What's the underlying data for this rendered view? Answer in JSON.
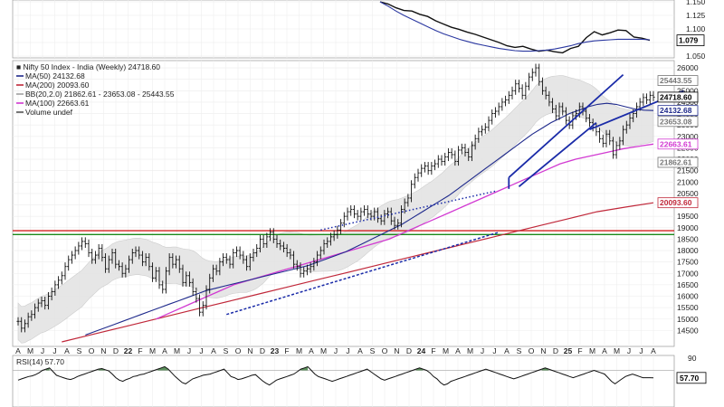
{
  "chart_data": [
    {
      "type": "line",
      "panel": "relative-ratio",
      "y_ticks": [
        1.05,
        1.075,
        1.1,
        1.125,
        1.15
      ],
      "y_tick_labels": [
        "1.050",
        "",
        "1.100",
        "1.125",
        "1.150"
      ],
      "ylim": [
        1.05,
        1.15
      ],
      "last_value_label": "1.079",
      "series": [
        {
          "values": [
            1.15,
            1.146,
            1.139,
            1.134,
            1.133,
            1.127,
            1.123,
            1.115,
            1.109,
            1.103,
            1.099,
            1.094,
            1.09,
            1.085,
            1.08,
            1.075,
            1.069,
            1.066,
            1.068,
            1.063,
            1.059,
            1.061,
            1.058,
            1.056,
            1.064,
            1.068,
            1.084,
            1.095,
            1.089,
            1.093,
            1.098,
            1.097,
            1.085,
            1.083,
            1.079
          ]
        },
        {
          "values": [
            1.15,
            1.142,
            1.133,
            1.125,
            1.118,
            1.111,
            1.104,
            1.097,
            1.091,
            1.086,
            1.081,
            1.077,
            1.073,
            1.07,
            1.067,
            1.064,
            1.062,
            1.06,
            1.059,
            1.059,
            1.06,
            1.061,
            1.063,
            1.066,
            1.069,
            1.073,
            1.076,
            1.078,
            1.079,
            1.08,
            1.081,
            1.081,
            1.081,
            1.081,
            1.08
          ]
        }
      ]
    },
    {
      "type": "candlestick",
      "panel": "price",
      "title": "Nifty 50 Index - India (Weekly) 24718.60",
      "legend": [
        {
          "text": "MA(50) 24132.68",
          "color": "#1f2a8c"
        },
        {
          "text": "MA(200) 20093.60",
          "color": "#c0283a"
        },
        {
          "text": "BB(20,2.0) 21862.61 - 23653.08 - 25443.55",
          "color": "#a0a0a0"
        },
        {
          "text": "MA(100) 22663.61",
          "color": "#d23ad2"
        },
        {
          "text": "Volume undef",
          "color": "#555555"
        }
      ],
      "ylim": [
        14000,
        26200
      ],
      "y_ticks": [
        14500,
        15000,
        15500,
        16000,
        16500,
        17000,
        17500,
        18000,
        18500,
        19000,
        19500,
        20000,
        20500,
        21000,
        21500,
        22000,
        22500,
        23000,
        23500,
        24000,
        24500,
        25000,
        25500,
        26000
      ],
      "right_labels": [
        {
          "value": 25443.55,
          "text": "25443.55",
          "color": "#777777"
        },
        {
          "value": 24718.6,
          "text": "24718.60",
          "color": "#000000"
        },
        {
          "value": 24132.68,
          "text": "24132.68",
          "color": "#1f2a8c"
        },
        {
          "value": 23653.08,
          "text": "23653.08",
          "color": "#777777"
        },
        {
          "value": 22663.61,
          "text": "22663.61",
          "color": "#d23ad2"
        },
        {
          "value": 21862.61,
          "text": "21862.61",
          "color": "#777777"
        },
        {
          "value": 20093.6,
          "text": "20093.60",
          "color": "#c0283a"
        }
      ],
      "x_labels": [
        "A",
        "M",
        "J",
        "J",
        "A",
        "S",
        "O",
        "N",
        "D",
        "22",
        "F",
        "M",
        "A",
        "M",
        "J",
        "J",
        "A",
        "S",
        "O",
        "N",
        "D",
        "23",
        "F",
        "M",
        "A",
        "M",
        "J",
        "J",
        "A",
        "S",
        "O",
        "N",
        "D",
        "24",
        "F",
        "M",
        "A",
        "M",
        "J",
        "J",
        "A",
        "S",
        "O",
        "N",
        "D",
        "25",
        "F",
        "M",
        "A",
        "M",
        "J",
        "J",
        "A"
      ],
      "closes": [
        14900,
        14600,
        14800,
        15100,
        15200,
        15500,
        15700,
        15800,
        15600,
        16000,
        16200,
        16500,
        16700,
        16900,
        17300,
        17600,
        17800,
        18000,
        18200,
        18400,
        18300,
        17900,
        17600,
        17800,
        18100,
        17700,
        17200,
        17600,
        17900,
        17400,
        17300,
        17000,
        17200,
        17600,
        17900,
        18000,
        17800,
        17500,
        17700,
        17300,
        16800,
        17100,
        16500,
        16300,
        17100,
        17700,
        17400,
        17600,
        17200,
        16600,
        16900,
        16600,
        16200,
        15900,
        15300,
        15600,
        16300,
        16800,
        17200,
        17100,
        17500,
        17700,
        17600,
        17400,
        17900,
        18000,
        17800,
        17600,
        17300,
        17700,
        17900,
        18100,
        18500,
        18300,
        18600,
        18800,
        18500,
        18300,
        18200,
        18100,
        17900,
        17800,
        17400,
        17300,
        17000,
        17100,
        17200,
        17300,
        17500,
        17800,
        18000,
        18300,
        18400,
        18600,
        18700,
        18900,
        19200,
        19500,
        19700,
        19800,
        19600,
        19500,
        19700,
        19800,
        19600,
        19500,
        19700,
        19400,
        19300,
        19600,
        19700,
        19300,
        19100,
        19200,
        19800,
        20100,
        20300,
        20900,
        21200,
        21400,
        21600,
        21700,
        21500,
        21700,
        21800,
        22000,
        21900,
        22100,
        22300,
        22200,
        21900,
        22400,
        22500,
        22300,
        22100,
        22600,
        22900,
        23200,
        23300,
        23400,
        23700,
        24000,
        24100,
        24300,
        24500,
        24600,
        24800,
        25000,
        25300,
        25100,
        24800,
        25200,
        25600,
        25800,
        26000,
        25400,
        25000,
        24800,
        24500,
        24200,
        23900,
        24300,
        24100,
        23700,
        23500,
        23900,
        24000,
        24300,
        24100,
        23800,
        23600,
        23400,
        23200,
        22900,
        22700,
        23100,
        22800,
        22200,
        22600,
        22800,
        23300,
        23500,
        23800,
        24000,
        24300,
        24500,
        24700,
        24600,
        24800,
        24719
      ],
      "ma50": [
        14300,
        14450,
        14600,
        14750,
        14900,
        15050,
        15200,
        15350,
        15500,
        15650,
        15800,
        15950,
        16100,
        16250,
        16350,
        16450,
        16550,
        16650,
        16750,
        16850,
        16950,
        17050,
        17150,
        17250,
        17350,
        17500,
        17650,
        17800,
        17950,
        18150,
        18350,
        18550,
        18750,
        18950,
        19150,
        19400,
        19650,
        19900,
        20150,
        20400,
        20700,
        21000,
        21300,
        21600,
        21900,
        22200,
        22500,
        22800,
        23100,
        23350,
        23600,
        23800,
        24000,
        24150,
        24300,
        24400,
        24450,
        24400,
        24300,
        24200,
        24150,
        24133
      ],
      "ma50_start": 60,
      "ma100": [
        15000,
        15300,
        15600,
        15900,
        16200,
        16500,
        16700,
        16900,
        17100,
        17300,
        17500,
        17700,
        17900,
        18100,
        18300,
        18500,
        18800,
        19100,
        19400,
        19700,
        20000,
        20300,
        20600,
        20900,
        21200,
        21500,
        21800,
        22000,
        22150,
        22300,
        22450,
        22560,
        22664
      ],
      "ma100_start": 121,
      "ma200": [
        14000,
        14300,
        14600,
        14900,
        15200,
        15500,
        15800,
        16100,
        16400,
        16700,
        17000,
        17300,
        17600,
        17900,
        18200,
        18500,
        18800,
        19100,
        19400,
        19700,
        19900,
        20094
      ],
      "ma200_start": 153,
      "bb_upper_offset": 800,
      "bb_lower_offset": 800,
      "horizontal_lines": [
        {
          "value": 18870,
          "color": "#d42020"
        },
        {
          "value": 18700,
          "color": "#1a8a1a"
        }
      ]
    },
    {
      "type": "line",
      "panel": "rsi",
      "title": "RSI(14) 57.70",
      "ylim": [
        10,
        90
      ],
      "y_ticks": [
        90,
        57.7
      ],
      "overbought": 70,
      "last_value_label": "57.70",
      "series": [
        {
          "name": "RSI(14) 57.70",
          "values": [
            54,
            56,
            58,
            60,
            61,
            63,
            66,
            70,
            72,
            74,
            68,
            62,
            60,
            58,
            56,
            55,
            57,
            60,
            62,
            64,
            66,
            68,
            70,
            72,
            73,
            71,
            69,
            64,
            58,
            54,
            52,
            55,
            57,
            60,
            61,
            63,
            64,
            66,
            68,
            70,
            72,
            74,
            76,
            72,
            66,
            60,
            55,
            50,
            48,
            52,
            56,
            58,
            60,
            62,
            63,
            64,
            66,
            68,
            70,
            72,
            66,
            60,
            58,
            55,
            56,
            58,
            60,
            62,
            63,
            58,
            53,
            49,
            46,
            50,
            54,
            56,
            58,
            60,
            62,
            64,
            68,
            72,
            74,
            76,
            70,
            64,
            60,
            58,
            56,
            54,
            52,
            54,
            56,
            58,
            60,
            62,
            64,
            66,
            68,
            70,
            72,
            68,
            64,
            60,
            56,
            54,
            56,
            58,
            60,
            62,
            64,
            66,
            68,
            70,
            72,
            74,
            72,
            70,
            66,
            60,
            56,
            50,
            46,
            48,
            52,
            54,
            56,
            58,
            60,
            62,
            64,
            66,
            68,
            70,
            72,
            70,
            68,
            66,
            64,
            62,
            60,
            58,
            56,
            58,
            60,
            62,
            64,
            66,
            68,
            70,
            72,
            74,
            72,
            70,
            68,
            66,
            64,
            62,
            60,
            58,
            60,
            62,
            64,
            66,
            68,
            70,
            68,
            66,
            64,
            58,
            52,
            48,
            52,
            56,
            60,
            62,
            64,
            62,
            60,
            58,
            58,
            58,
            57.7
          ]
        }
      ]
    }
  ]
}
